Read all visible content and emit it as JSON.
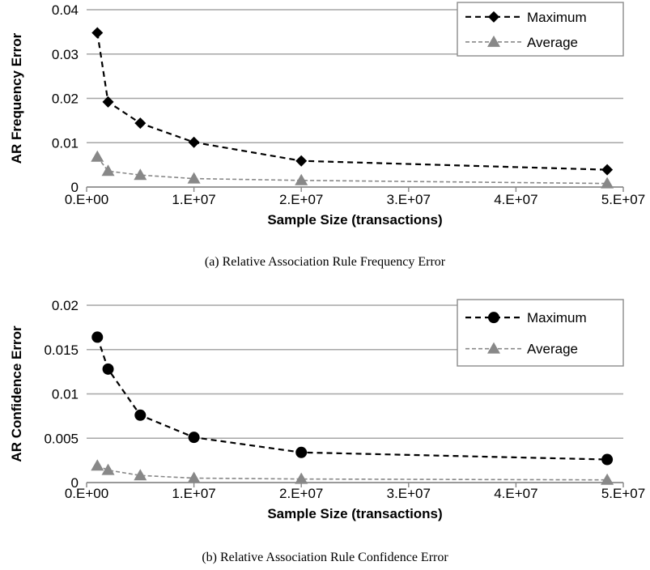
{
  "captions": {
    "a": "(a) Relative Association Rule Frequency Error",
    "b": "(b) Relative Association Rule Confidence Error"
  },
  "colors": {
    "maximum": "#000000",
    "average": "#888888",
    "grid": "#a6a6a6"
  },
  "chart_data": [
    {
      "type": "line",
      "title": "",
      "xlabel": "Sample Size (transactions)",
      "ylabel": "AR Frequency Error",
      "xlim": [
        0,
        50000000
      ],
      "ylim": [
        0,
        0.04
      ],
      "x_ticks": [
        0,
        10000000,
        20000000,
        30000000,
        40000000,
        50000000
      ],
      "x_tick_labels": [
        "0.E+00",
        "1.E+07",
        "2.E+07",
        "3.E+07",
        "4.E+07",
        "5.E+07"
      ],
      "y_ticks": [
        0,
        0.01,
        0.02,
        0.03,
        0.04
      ],
      "y_tick_labels": [
        "0",
        "0.01",
        "0.02",
        "0.03",
        "0.04"
      ],
      "grid": "horizontal",
      "legend": "top-right",
      "series": [
        {
          "name": "Maximum",
          "marker": "diamond",
          "color": "#000000",
          "x": [
            1000000,
            2000000,
            5000000,
            10000000,
            20000000,
            48500000
          ],
          "y": [
            0.0348,
            0.0192,
            0.0144,
            0.0101,
            0.0059,
            0.0039
          ]
        },
        {
          "name": "Average",
          "marker": "triangle",
          "color": "#888888",
          "x": [
            1000000,
            2000000,
            5000000,
            10000000,
            20000000,
            48500000
          ],
          "y": [
            0.0068,
            0.0036,
            0.0027,
            0.0019,
            0.0015,
            0.0008
          ]
        }
      ]
    },
    {
      "type": "line",
      "title": "",
      "xlabel": "Sample Size (transactions)",
      "ylabel": "AR Confidence Error",
      "xlim": [
        0,
        50000000
      ],
      "ylim": [
        0,
        0.02
      ],
      "x_ticks": [
        0,
        10000000,
        20000000,
        30000000,
        40000000,
        50000000
      ],
      "x_tick_labels": [
        "0.E+00",
        "1.E+07",
        "2.E+07",
        "3.E+07",
        "4.E+07",
        "5.E+07"
      ],
      "y_ticks": [
        0,
        0.005,
        0.01,
        0.015,
        0.02
      ],
      "y_tick_labels": [
        "0",
        "0.005",
        "0.01",
        "0.015",
        "0.02"
      ],
      "grid": "horizontal",
      "legend": "top-right",
      "series": [
        {
          "name": "Maximum",
          "marker": "circle",
          "color": "#000000",
          "x": [
            1000000,
            2000000,
            5000000,
            10000000,
            20000000,
            48500000
          ],
          "y": [
            0.0164,
            0.0128,
            0.0076,
            0.0051,
            0.0034,
            0.0026
          ]
        },
        {
          "name": "Average",
          "marker": "triangle",
          "color": "#888888",
          "x": [
            1000000,
            2000000,
            5000000,
            10000000,
            20000000,
            48500000
          ],
          "y": [
            0.0019,
            0.0014,
            0.0008,
            0.0005,
            0.0004,
            0.0003
          ]
        }
      ]
    }
  ]
}
